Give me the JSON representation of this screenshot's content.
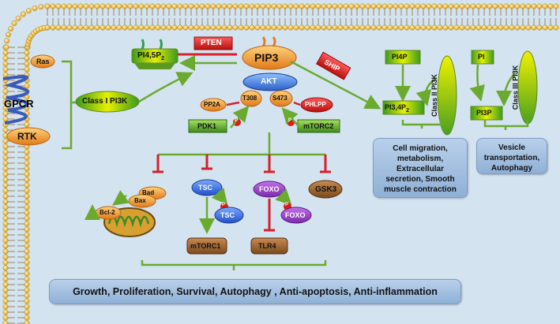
{
  "membrane": {
    "gpcr": "GPCR",
    "rtk": "RTK",
    "ras": "Ras"
  },
  "lipids": {
    "pi45p2": "PI4,5P",
    "pi45p2_sub": "2",
    "pip3": "PIP3",
    "pi4p": "PI4P",
    "pi": "PI",
    "pi34p2": "PI3,4P",
    "pi34p2_sub": "2",
    "pi3p": "PI3P"
  },
  "enzymes": {
    "pten": "PTEN",
    "ship": "SHIP",
    "class1": "Class I PI3K",
    "class2": "Class II PI3K",
    "class3": "Class III PI3K",
    "akt": "AKT",
    "t308": "T308",
    "s473": "S473",
    "pp2a": "PP2A",
    "phlpp": "PHLPP",
    "pdk1": "PDK1",
    "mtorc2": "mTORC2",
    "p": "P"
  },
  "targets": {
    "tsc": "TSC",
    "foxo": "FOXO",
    "gsk3": "GSK3",
    "mtorc1": "mTORC1",
    "tlr4": "TLR4",
    "bad": "Bad",
    "bax": "Bax",
    "bcl2": "Bcl-2"
  },
  "outcomes": {
    "class2_lines": [
      "Cell migration,",
      "metabolism,",
      "Extracellular",
      "secretion, Smooth",
      "muscle contraction"
    ],
    "class3_lines": [
      "Vesicle",
      "transportation,",
      "Autophagy"
    ],
    "main": "Growth, Proliferation, Survival, Autophagy , Anti-apoptosis, Anti-inflammation"
  },
  "colors": {
    "membrane_head": "#f2c244",
    "green_arrow": "#6aaa2e",
    "inhibit_red": "#d6202a",
    "purple": "#a040c0"
  }
}
